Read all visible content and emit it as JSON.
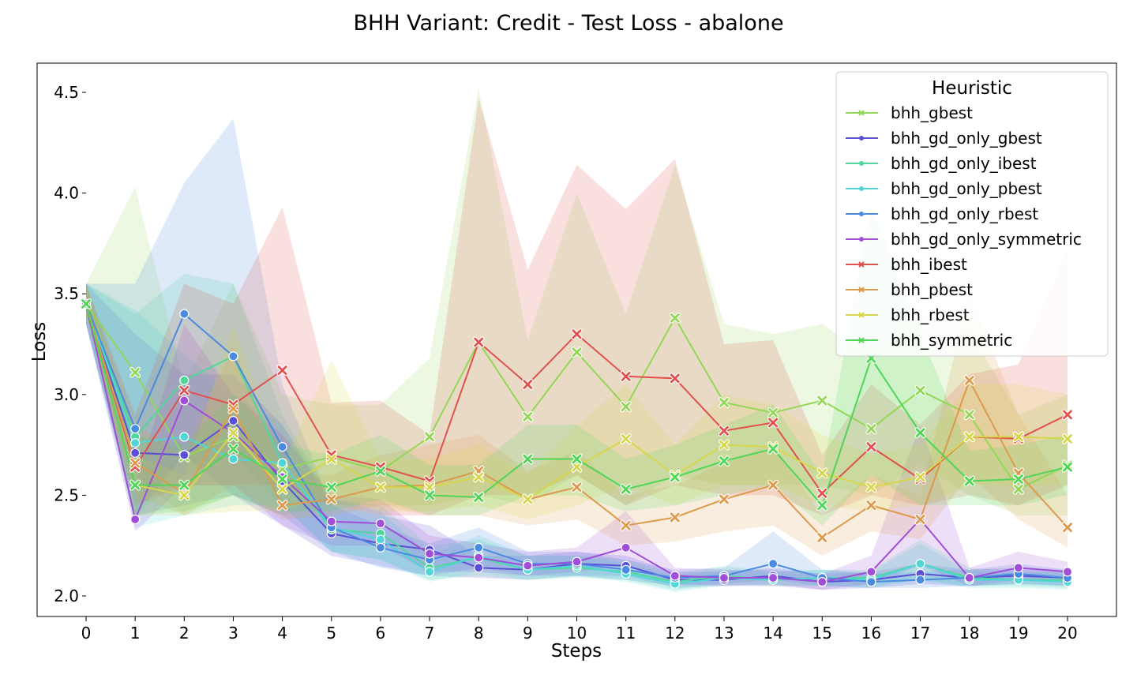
{
  "chart_data": {
    "type": "line",
    "title": "BHH Variant: Credit - Test Loss - abalone",
    "xlabel": "Steps",
    "ylabel": "Loss",
    "xlim": [
      0,
      20
    ],
    "ylim": [
      1.9,
      4.65
    ],
    "x": [
      0,
      1,
      2,
      3,
      4,
      5,
      6,
      7,
      8,
      9,
      10,
      11,
      12,
      13,
      14,
      15,
      16,
      17,
      18,
      19,
      20
    ],
    "xticks": [
      "0",
      "1",
      "2",
      "3",
      "4",
      "5",
      "6",
      "7",
      "8",
      "9",
      "10",
      "11",
      "12",
      "13",
      "14",
      "15",
      "16",
      "17",
      "18",
      "19",
      "20"
    ],
    "yticks": [
      "2.0",
      "2.5",
      "3.0",
      "3.5",
      "4.0",
      "4.5"
    ],
    "ytick_values": [
      2.0,
      2.5,
      3.0,
      3.5,
      4.0,
      4.5
    ],
    "grid": false,
    "legend": {
      "title": "Heuristic",
      "placement": "top-right"
    },
    "series": [
      {
        "name": "bhh_gbest",
        "color": "#93d757",
        "marker": "x",
        "values": [
          3.45,
          3.11,
          2.69,
          2.79,
          2.63,
          2.69,
          2.62,
          2.79,
          3.26,
          2.89,
          3.21,
          2.94,
          3.38,
          2.96,
          2.91,
          2.97,
          2.83,
          3.02,
          2.9,
          2.53,
          2.65
        ],
        "lower": [
          3.4,
          2.6,
          2.4,
          2.5,
          2.4,
          2.45,
          2.45,
          2.45,
          2.5,
          2.45,
          2.6,
          2.45,
          2.6,
          2.55,
          2.55,
          2.55,
          2.5,
          2.65,
          2.5,
          2.4,
          2.4
        ],
        "upper": [
          3.55,
          4.03,
          3.05,
          3.55,
          3.0,
          2.95,
          2.95,
          3.18,
          4.52,
          3.27,
          4.0,
          3.4,
          4.14,
          3.35,
          3.3,
          3.35,
          3.18,
          3.4,
          3.32,
          2.9,
          3.0
        ]
      },
      {
        "name": "bhh_gd_only_gbest",
        "color": "#5a4fd6",
        "marker": "o",
        "values": [
          3.45,
          2.71,
          2.7,
          2.87,
          2.57,
          2.31,
          2.26,
          2.23,
          2.14,
          2.13,
          2.16,
          2.15,
          2.08,
          2.08,
          2.1,
          2.07,
          2.08,
          2.11,
          2.09,
          2.1,
          2.09
        ],
        "lower": [
          3.35,
          2.4,
          2.45,
          2.5,
          2.35,
          2.2,
          2.15,
          2.1,
          2.09,
          2.08,
          2.1,
          2.1,
          2.04,
          2.05,
          2.06,
          2.03,
          2.04,
          2.06,
          2.05,
          2.06,
          2.05
        ],
        "upper": [
          3.55,
          3.3,
          3.1,
          3.1,
          2.85,
          2.45,
          2.4,
          2.35,
          2.2,
          2.2,
          2.22,
          2.2,
          2.12,
          2.12,
          2.14,
          2.11,
          2.12,
          2.16,
          2.13,
          2.14,
          2.13
        ]
      },
      {
        "name": "bhh_gd_only_ibest",
        "color": "#4fd89a",
        "marker": "o",
        "values": [
          3.45,
          2.79,
          3.07,
          3.19,
          2.66,
          2.33,
          2.31,
          2.14,
          2.19,
          2.13,
          2.14,
          2.12,
          2.07,
          2.1,
          2.08,
          2.09,
          2.09,
          2.16,
          2.09,
          2.08,
          2.08
        ],
        "lower": [
          3.35,
          2.4,
          2.6,
          2.7,
          2.45,
          2.22,
          2.18,
          2.08,
          2.1,
          2.08,
          2.09,
          2.08,
          2.03,
          2.06,
          2.05,
          2.05,
          2.05,
          2.08,
          2.05,
          2.05,
          2.04
        ],
        "upper": [
          3.55,
          3.4,
          3.6,
          3.55,
          2.9,
          2.48,
          2.45,
          2.25,
          2.28,
          2.2,
          2.2,
          2.18,
          2.11,
          2.15,
          2.12,
          2.13,
          2.13,
          2.28,
          2.14,
          2.12,
          2.12
        ]
      },
      {
        "name": "bhh_gd_only_pbest",
        "color": "#4fd6d6",
        "marker": "o",
        "values": [
          3.45,
          2.76,
          2.79,
          2.68,
          2.66,
          2.34,
          2.28,
          2.12,
          2.2,
          2.13,
          2.15,
          2.11,
          2.06,
          2.09,
          2.08,
          2.09,
          2.08,
          2.16,
          2.08,
          2.08,
          2.07
        ],
        "lower": [
          3.35,
          2.34,
          2.4,
          2.45,
          2.45,
          2.22,
          2.18,
          2.07,
          2.12,
          2.08,
          2.1,
          2.07,
          2.02,
          2.05,
          2.05,
          2.05,
          2.04,
          2.08,
          2.04,
          2.04,
          2.03
        ],
        "upper": [
          3.55,
          3.42,
          3.2,
          3.0,
          2.85,
          2.48,
          2.42,
          2.2,
          2.3,
          2.2,
          2.2,
          2.16,
          2.1,
          2.13,
          2.12,
          2.13,
          2.12,
          2.26,
          2.12,
          2.12,
          2.11
        ]
      },
      {
        "name": "bhh_gd_only_rbest",
        "color": "#4a8ae0",
        "marker": "o",
        "values": [
          3.45,
          2.83,
          3.4,
          3.19,
          2.74,
          2.34,
          2.24,
          2.18,
          2.24,
          2.16,
          2.16,
          2.13,
          2.09,
          2.1,
          2.16,
          2.09,
          2.07,
          2.08,
          2.09,
          2.11,
          2.09
        ],
        "lower": [
          3.35,
          2.4,
          2.7,
          2.5,
          2.4,
          2.22,
          2.14,
          2.1,
          2.14,
          2.1,
          2.1,
          2.08,
          2.05,
          2.06,
          2.08,
          2.05,
          2.04,
          2.04,
          2.05,
          2.06,
          2.05
        ],
        "upper": [
          3.55,
          3.55,
          4.05,
          4.37,
          3.05,
          2.45,
          2.35,
          2.26,
          2.34,
          2.22,
          2.22,
          2.18,
          2.13,
          2.14,
          2.32,
          2.13,
          2.11,
          2.12,
          2.13,
          2.16,
          2.13
        ]
      },
      {
        "name": "bhh_gd_only_symmetric",
        "color": "#a04ed8",
        "marker": "o",
        "values": [
          3.45,
          2.38,
          2.97,
          2.81,
          2.59,
          2.37,
          2.36,
          2.21,
          2.19,
          2.15,
          2.17,
          2.24,
          2.1,
          2.09,
          2.09,
          2.07,
          2.12,
          2.38,
          2.09,
          2.14,
          2.12
        ],
        "lower": [
          3.35,
          2.32,
          2.55,
          2.55,
          2.35,
          2.25,
          2.25,
          2.12,
          2.12,
          2.1,
          2.12,
          2.15,
          2.06,
          2.05,
          2.05,
          2.03,
          2.06,
          2.15,
          2.05,
          2.08,
          2.08
        ],
        "upper": [
          3.55,
          2.55,
          3.35,
          3.0,
          2.8,
          2.5,
          2.48,
          2.3,
          2.26,
          2.22,
          2.24,
          2.42,
          2.14,
          2.13,
          2.13,
          2.11,
          2.2,
          2.85,
          2.14,
          2.22,
          2.17
        ]
      },
      {
        "name": "bhh_ibest",
        "color": "#e0524f",
        "marker": "x",
        "values": [
          3.45,
          2.64,
          3.02,
          2.95,
          3.12,
          2.7,
          2.64,
          2.57,
          3.26,
          3.05,
          3.3,
          3.09,
          3.08,
          2.82,
          2.86,
          2.51,
          2.74,
          2.58,
          2.79,
          2.78,
          2.9
        ],
        "lower": [
          3.4,
          2.45,
          2.55,
          2.55,
          2.55,
          2.45,
          2.4,
          2.4,
          2.5,
          2.5,
          2.6,
          2.45,
          2.55,
          2.5,
          2.5,
          2.4,
          2.5,
          2.45,
          2.5,
          2.45,
          2.55
        ],
        "upper": [
          3.55,
          2.9,
          3.55,
          3.45,
          3.93,
          2.96,
          2.97,
          2.8,
          4.47,
          3.62,
          4.14,
          3.92,
          4.17,
          3.25,
          3.27,
          2.7,
          3.05,
          2.85,
          3.1,
          3.15,
          3.72
        ]
      },
      {
        "name": "bhh_pbest",
        "color": "#dc9a4c",
        "marker": "x",
        "values": [
          3.45,
          2.66,
          2.51,
          2.93,
          2.45,
          2.48,
          2.54,
          2.55,
          2.62,
          2.48,
          2.54,
          2.35,
          2.39,
          2.48,
          2.55,
          2.29,
          2.45,
          2.38,
          3.07,
          2.61,
          2.34
        ],
        "lower": [
          3.4,
          2.5,
          2.4,
          2.55,
          2.38,
          2.4,
          2.45,
          2.4,
          2.4,
          2.35,
          2.38,
          2.25,
          2.27,
          2.32,
          2.35,
          2.2,
          2.32,
          2.28,
          2.6,
          2.38,
          2.24
        ],
        "upper": [
          3.55,
          2.85,
          2.7,
          3.25,
          2.6,
          2.6,
          2.7,
          2.75,
          2.8,
          2.62,
          2.72,
          2.5,
          2.55,
          2.66,
          2.75,
          2.4,
          2.6,
          2.5,
          3.5,
          2.9,
          2.5
        ]
      },
      {
        "name": "bhh_rbest",
        "color": "#d6d64a",
        "marker": "x",
        "values": [
          3.45,
          2.55,
          2.5,
          2.81,
          2.53,
          2.68,
          2.54,
          2.54,
          2.59,
          2.48,
          2.64,
          2.78,
          2.6,
          2.75,
          2.74,
          2.61,
          2.54,
          2.59,
          2.79,
          2.79,
          2.78
        ],
        "lower": [
          3.4,
          2.4,
          2.4,
          2.42,
          2.42,
          2.5,
          2.42,
          2.42,
          2.45,
          2.38,
          2.45,
          2.55,
          2.45,
          2.55,
          2.55,
          2.45,
          2.42,
          2.45,
          2.55,
          2.55,
          2.55
        ],
        "upper": [
          3.55,
          2.7,
          2.6,
          3.35,
          2.65,
          3.17,
          2.68,
          2.68,
          2.75,
          2.6,
          2.85,
          3.05,
          2.75,
          3.0,
          2.95,
          2.8,
          2.7,
          2.75,
          3.05,
          3.05,
          3.0
        ]
      },
      {
        "name": "bhh_symmetric",
        "color": "#4fd657",
        "marker": "x",
        "values": [
          3.45,
          2.55,
          2.55,
          2.73,
          2.58,
          2.54,
          2.62,
          2.5,
          2.49,
          2.68,
          2.68,
          2.53,
          2.59,
          2.67,
          2.73,
          2.45,
          3.18,
          2.81,
          2.57,
          2.58,
          2.64
        ],
        "lower": [
          3.4,
          2.4,
          2.42,
          2.5,
          2.42,
          2.42,
          2.48,
          2.4,
          2.4,
          2.5,
          2.5,
          2.42,
          2.45,
          2.5,
          2.55,
          2.35,
          2.6,
          2.45,
          2.45,
          2.45,
          2.5
        ],
        "upper": [
          3.55,
          2.8,
          2.75,
          3.0,
          2.75,
          2.7,
          2.8,
          2.65,
          2.65,
          2.85,
          2.85,
          2.68,
          2.75,
          2.85,
          2.95,
          2.6,
          3.95,
          3.3,
          2.72,
          2.75,
          2.8
        ]
      }
    ]
  }
}
